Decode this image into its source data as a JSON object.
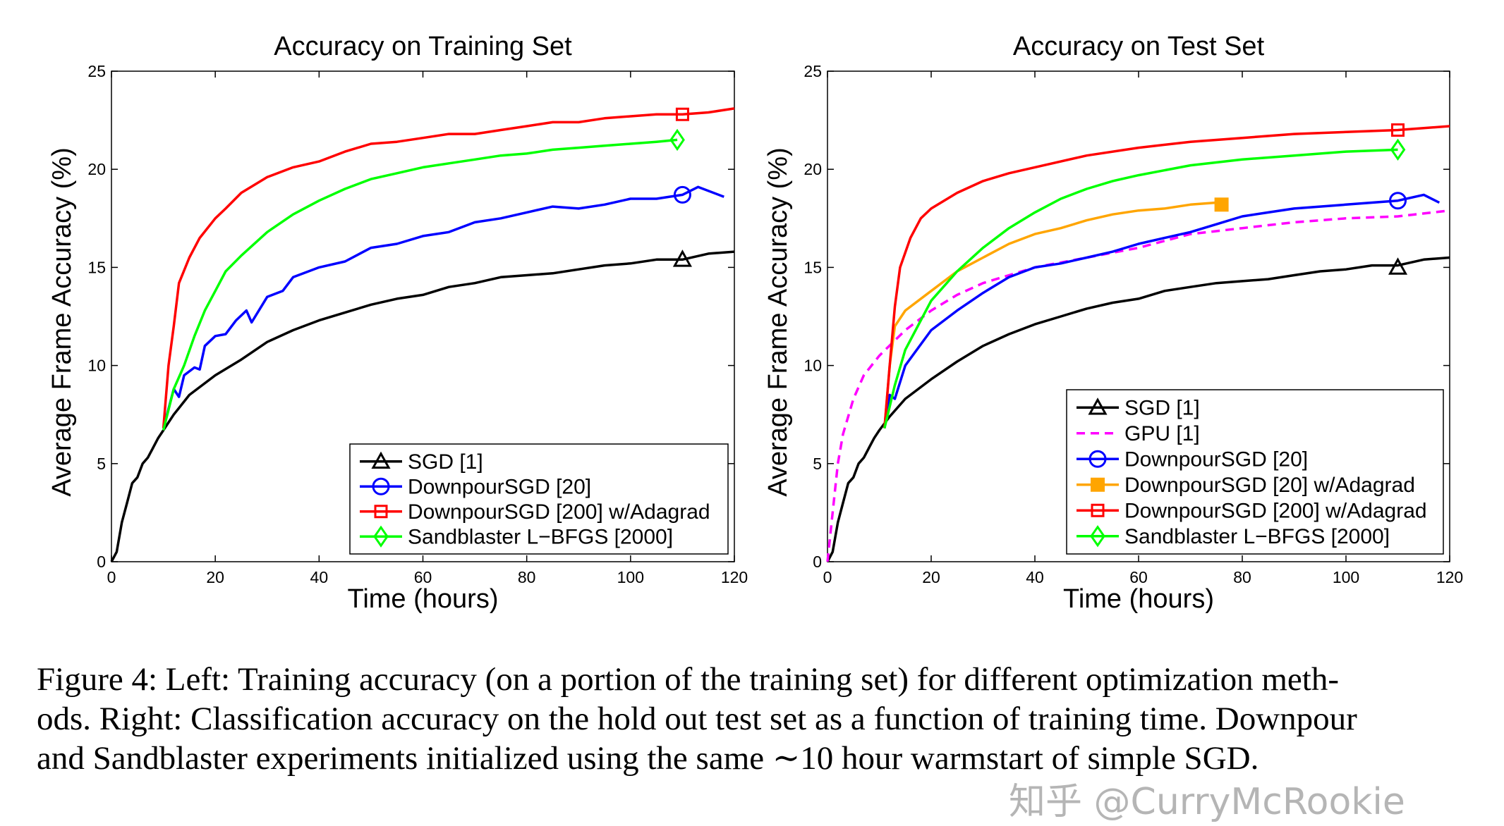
{
  "chart_data": [
    {
      "type": "line",
      "title": "Accuracy on Training Set",
      "xlabel": "Time (hours)",
      "ylabel": "Average Frame Accuracy (%)",
      "xlim": [
        0,
        120
      ],
      "ylim": [
        0,
        25
      ],
      "xticks": [
        0,
        20,
        40,
        60,
        80,
        100,
        120
      ],
      "yticks": [
        0,
        5,
        10,
        15,
        20,
        25
      ],
      "grid": false,
      "legend_position": "bottom-right",
      "series": [
        {
          "name": "SGD [1]",
          "color": "#000000",
          "marker": "triangle",
          "dash": false,
          "marker_at": [
            110,
            15.4
          ],
          "x": [
            0,
            1,
            2,
            3,
            4,
            5,
            6,
            7,
            8,
            9,
            10,
            12,
            15,
            20,
            25,
            30,
            35,
            40,
            45,
            50,
            55,
            60,
            65,
            70,
            75,
            80,
            85,
            90,
            95,
            100,
            105,
            110,
            115,
            120
          ],
          "y": [
            0,
            0.5,
            2,
            3,
            4,
            4.3,
            5,
            5.3,
            5.8,
            6.3,
            6.7,
            7.5,
            8.5,
            9.5,
            10.3,
            11.2,
            11.8,
            12.3,
            12.7,
            13.1,
            13.4,
            13.6,
            14,
            14.2,
            14.5,
            14.6,
            14.7,
            14.9,
            15.1,
            15.2,
            15.4,
            15.4,
            15.7,
            15.8
          ]
        },
        {
          "name": "DownpourSGD [20]",
          "color": "#0000ff",
          "marker": "circle",
          "dash": false,
          "marker_at": [
            110,
            18.7
          ],
          "x": [
            10,
            12,
            13,
            14,
            16,
            17,
            18,
            20,
            22,
            24,
            26,
            27,
            30,
            33,
            35,
            40,
            45,
            50,
            55,
            60,
            65,
            70,
            75,
            80,
            85,
            90,
            95,
            100,
            105,
            110,
            113,
            118
          ],
          "y": [
            6.8,
            8.8,
            8.4,
            9.5,
            9.9,
            9.8,
            11,
            11.5,
            11.6,
            12.3,
            12.8,
            12.2,
            13.5,
            13.8,
            14.5,
            15,
            15.3,
            16,
            16.2,
            16.6,
            16.8,
            17.3,
            17.5,
            17.8,
            18.1,
            18,
            18.2,
            18.5,
            18.5,
            18.7,
            19.1,
            18.6
          ]
        },
        {
          "name": "DownpourSGD [200] w/Adagrad",
          "color": "#ff0000",
          "marker": "square",
          "dash": false,
          "marker_at": [
            110,
            22.8
          ],
          "x": [
            10,
            11,
            12,
            13,
            15,
            17,
            20,
            22,
            25,
            30,
            35,
            40,
            45,
            50,
            55,
            60,
            65,
            70,
            75,
            80,
            85,
            90,
            95,
            100,
            105,
            110,
            115,
            120
          ],
          "y": [
            6.8,
            10,
            12,
            14.2,
            15.5,
            16.5,
            17.5,
            18,
            18.8,
            19.6,
            20.1,
            20.4,
            20.9,
            21.3,
            21.4,
            21.6,
            21.8,
            21.8,
            22,
            22.2,
            22.4,
            22.4,
            22.6,
            22.7,
            22.8,
            22.8,
            22.9,
            23.1
          ]
        },
        {
          "name": "Sandblaster L−BFGS [2000]",
          "color": "#00ff00",
          "marker": "diamond",
          "dash": false,
          "marker_at": [
            109,
            21.5
          ],
          "x": [
            10,
            12,
            14,
            16,
            18,
            20,
            22,
            25,
            30,
            35,
            40,
            45,
            50,
            55,
            60,
            65,
            70,
            75,
            80,
            85,
            90,
            95,
            100,
            105,
            109
          ],
          "y": [
            6.7,
            8.8,
            10,
            11.5,
            12.8,
            13.8,
            14.8,
            15.6,
            16.8,
            17.7,
            18.4,
            19,
            19.5,
            19.8,
            20.1,
            20.3,
            20.5,
            20.7,
            20.8,
            21,
            21.1,
            21.2,
            21.3,
            21.4,
            21.5
          ]
        }
      ]
    },
    {
      "type": "line",
      "title": "Accuracy on Test Set",
      "xlabel": "Time (hours)",
      "ylabel": "Average Frame Accuracy (%)",
      "xlim": [
        0,
        120
      ],
      "ylim": [
        0,
        25
      ],
      "xticks": [
        0,
        20,
        40,
        60,
        80,
        100,
        120
      ],
      "yticks": [
        0,
        5,
        10,
        15,
        20,
        25
      ],
      "grid": false,
      "legend_position": "bottom-right",
      "series": [
        {
          "name": "SGD [1]",
          "color": "#000000",
          "marker": "triangle",
          "dash": false,
          "marker_at": [
            110,
            15
          ],
          "x": [
            0,
            1,
            2,
            3,
            4,
            5,
            6,
            7,
            8,
            9,
            10,
            12,
            15,
            20,
            25,
            30,
            35,
            40,
            45,
            50,
            55,
            60,
            65,
            70,
            75,
            80,
            85,
            90,
            95,
            100,
            105,
            110,
            115,
            120
          ],
          "y": [
            0,
            0.5,
            2,
            3,
            4,
            4.3,
            5,
            5.3,
            5.8,
            6.3,
            6.7,
            7.4,
            8.3,
            9.3,
            10.2,
            11,
            11.6,
            12.1,
            12.5,
            12.9,
            13.2,
            13.4,
            13.8,
            14,
            14.2,
            14.3,
            14.4,
            14.6,
            14.8,
            14.9,
            15.1,
            15.1,
            15.4,
            15.5
          ]
        },
        {
          "name": "GPU [1]",
          "color": "#ff00ff",
          "marker": "none",
          "dash": true,
          "x": [
            0,
            1,
            2,
            3,
            5,
            7,
            10,
            15,
            20,
            25,
            30,
            35,
            40,
            50,
            60,
            70,
            80,
            90,
            100,
            110,
            120
          ],
          "y": [
            0,
            2.5,
            5,
            6.5,
            8.3,
            9.5,
            10.5,
            11.8,
            12.8,
            13.6,
            14.2,
            14.6,
            15,
            15.5,
            16,
            16.7,
            17,
            17.3,
            17.5,
            17.6,
            17.9
          ]
        },
        {
          "name": "DownpourSGD [20]",
          "color": "#0000ff",
          "marker": "circle",
          "dash": false,
          "marker_at": [
            110,
            18.4
          ],
          "x": [
            11,
            12,
            13,
            15,
            20,
            25,
            30,
            35,
            40,
            45,
            50,
            55,
            60,
            65,
            70,
            75,
            80,
            85,
            90,
            95,
            100,
            105,
            110,
            115,
            118
          ],
          "y": [
            6.8,
            8.5,
            8.3,
            10,
            11.8,
            12.8,
            13.7,
            14.5,
            15,
            15.2,
            15.5,
            15.8,
            16.2,
            16.5,
            16.8,
            17.2,
            17.6,
            17.8,
            18,
            18.1,
            18.2,
            18.3,
            18.4,
            18.7,
            18.3
          ]
        },
        {
          "name": "DownpourSGD [20] w/Adagrad",
          "color": "#ffa500",
          "marker": "filled-square",
          "dash": false,
          "marker_at": [
            76,
            18.2
          ],
          "x": [
            11,
            12,
            13,
            15,
            20,
            25,
            30,
            35,
            40,
            45,
            50,
            55,
            60,
            65,
            70,
            75
          ],
          "y": [
            6.8,
            10,
            12,
            12.8,
            13.8,
            14.8,
            15.5,
            16.2,
            16.7,
            17,
            17.4,
            17.7,
            17.9,
            18,
            18.2,
            18.3
          ]
        },
        {
          "name": "DownpourSGD [200] w/Adagrad",
          "color": "#ff0000",
          "marker": "square",
          "dash": false,
          "marker_at": [
            110,
            22
          ],
          "x": [
            11,
            12,
            13,
            14,
            16,
            18,
            20,
            25,
            30,
            35,
            40,
            50,
            60,
            70,
            80,
            90,
            100,
            110,
            120
          ],
          "y": [
            6.8,
            10,
            13,
            15,
            16.5,
            17.5,
            18,
            18.8,
            19.4,
            19.8,
            20.1,
            20.7,
            21.1,
            21.4,
            21.6,
            21.8,
            21.9,
            22,
            22.2
          ]
        },
        {
          "name": "Sandblaster L−BFGS [2000]",
          "color": "#00ff00",
          "marker": "diamond",
          "dash": false,
          "marker_at": [
            110,
            21
          ],
          "x": [
            11,
            13,
            15,
            18,
            20,
            25,
            30,
            35,
            40,
            45,
            50,
            55,
            60,
            70,
            80,
            90,
            100,
            110
          ],
          "y": [
            6.8,
            9,
            10.8,
            12.3,
            13.3,
            14.8,
            16,
            17,
            17.8,
            18.5,
            19,
            19.4,
            19.7,
            20.2,
            20.5,
            20.7,
            20.9,
            21
          ]
        }
      ]
    }
  ],
  "caption": {
    "lines": [
      "Figure 4: Left: Training accuracy (on a portion of the training set) for different optimization meth-",
      "ods. Right: Classification accuracy on the hold out test set as a function of training time. Downpour",
      "and Sandblaster experiments initialized using the same ∼10 hour warmstart of simple SGD."
    ]
  },
  "watermark": "知乎 @CurryMcRookie"
}
